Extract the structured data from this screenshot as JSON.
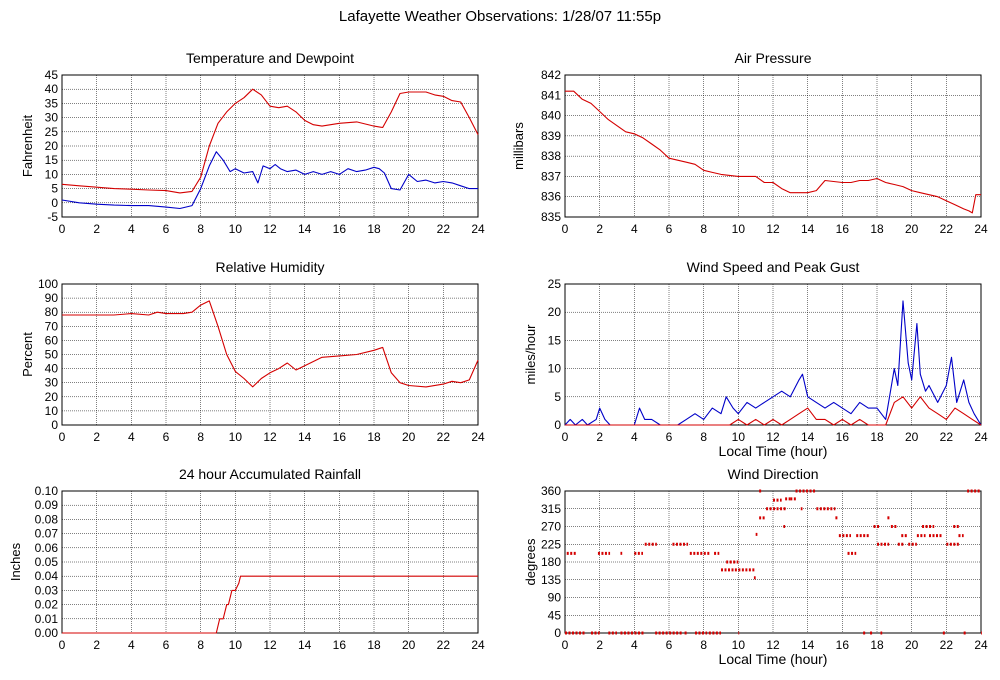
{
  "page_title": "Lafayette Weather Observations: 1/28/07 11:55p",
  "colors": {
    "series_red": "#d40000",
    "series_blue": "#0000c8",
    "grid": "#000000",
    "background": "#ffffff"
  },
  "chart_data": [
    {
      "id": "temp",
      "type": "line",
      "title": "Temperature and Dewpoint",
      "xlabel": "",
      "ylabel": "Fahrenheit",
      "xlim": [
        0,
        24
      ],
      "ylim": [
        -5,
        45
      ],
      "xticks": [
        0,
        2,
        4,
        6,
        8,
        10,
        12,
        14,
        16,
        18,
        20,
        22,
        24
      ],
      "yticks": [
        -5,
        0,
        5,
        10,
        15,
        20,
        25,
        30,
        35,
        40,
        45
      ],
      "grid": true,
      "series": [
        {
          "color": "#d40000",
          "x": [
            0,
            1,
            2,
            3,
            4,
            5,
            6,
            6.8,
            7.5,
            8,
            8.5,
            9,
            9.5,
            10,
            10.5,
            11,
            11.5,
            12,
            12.5,
            13,
            13.5,
            14,
            14.5,
            15,
            16,
            17,
            18,
            18.5,
            19,
            19.5,
            20,
            20.5,
            21,
            21.5,
            22,
            22.5,
            23,
            23.5,
            24
          ],
          "y": [
            6.5,
            6,
            5.5,
            5,
            4.8,
            4.5,
            4.3,
            3.5,
            4,
            9,
            20,
            28,
            32,
            35,
            37,
            40,
            38,
            34,
            33.5,
            34,
            32,
            29,
            27.5,
            27,
            28,
            28.5,
            27,
            26.5,
            32,
            38.5,
            39,
            39,
            39,
            38,
            37.5,
            36,
            35.5,
            30,
            24
          ]
        },
        {
          "color": "#0000c8",
          "x": [
            0,
            1,
            2,
            3,
            4,
            5,
            6,
            6.8,
            7.5,
            8,
            8.5,
            8.9,
            9.3,
            9.7,
            10,
            10.5,
            11,
            11.3,
            11.6,
            12,
            12.3,
            12.6,
            13,
            13.5,
            14,
            14.5,
            15,
            15.5,
            16,
            16.5,
            17,
            17.5,
            18,
            18.3,
            18.6,
            19,
            19.5,
            20,
            20.5,
            21,
            21.5,
            22,
            22.5,
            23,
            23.5,
            24
          ],
          "y": [
            1,
            0,
            -0.5,
            -0.8,
            -1,
            -1,
            -1.5,
            -2,
            -1,
            5,
            13,
            18,
            15,
            11,
            12,
            10.5,
            11,
            7,
            13,
            12,
            13.5,
            12,
            11,
            11.5,
            10,
            11,
            10,
            11,
            10,
            12,
            11,
            11.5,
            12.5,
            12,
            10.5,
            5,
            4.5,
            10,
            7.5,
            8,
            7,
            7.5,
            7,
            6,
            5,
            5
          ]
        }
      ]
    },
    {
      "id": "pressure",
      "type": "line",
      "title": "Air Pressure",
      "xlabel": "",
      "ylabel": "millibars",
      "xlim": [
        0,
        24
      ],
      "ylim": [
        835,
        842
      ],
      "xticks": [
        0,
        2,
        4,
        6,
        8,
        10,
        12,
        14,
        16,
        18,
        20,
        22,
        24
      ],
      "yticks": [
        835,
        836,
        837,
        838,
        839,
        840,
        841,
        842
      ],
      "grid": true,
      "series": [
        {
          "color": "#d40000",
          "x": [
            0,
            0.5,
            1,
            1.5,
            2,
            2.5,
            3,
            3.5,
            4,
            4.5,
            5,
            5.5,
            6,
            7,
            7.5,
            8,
            8.5,
            9,
            10,
            11,
            11.5,
            12,
            12.5,
            13,
            14,
            14.5,
            15,
            16,
            16.5,
            17,
            17.5,
            18,
            18.5,
            19,
            19.5,
            20,
            20.5,
            21,
            21.5,
            22,
            22.5,
            23,
            23.3,
            23.5,
            23.7,
            24
          ],
          "y": [
            841.2,
            841.2,
            840.8,
            840.6,
            840.2,
            839.8,
            839.5,
            839.2,
            839.1,
            838.9,
            838.6,
            838.3,
            837.9,
            837.7,
            837.6,
            837.3,
            837.2,
            837.1,
            837,
            837,
            836.7,
            836.7,
            836.4,
            836.2,
            836.2,
            836.3,
            836.8,
            836.7,
            836.7,
            836.8,
            836.8,
            836.9,
            836.7,
            836.6,
            836.5,
            836.3,
            836.2,
            836.1,
            836,
            835.8,
            835.6,
            835.4,
            835.3,
            835.2,
            836.1,
            836.1
          ]
        }
      ]
    },
    {
      "id": "humidity",
      "type": "line",
      "title": "Relative Humidity",
      "xlabel": "",
      "ylabel": "Percent",
      "xlim": [
        0,
        24
      ],
      "ylim": [
        0,
        100
      ],
      "xticks": [
        0,
        2,
        4,
        6,
        8,
        10,
        12,
        14,
        16,
        18,
        20,
        22,
        24
      ],
      "yticks": [
        0,
        10,
        20,
        30,
        40,
        50,
        60,
        70,
        80,
        90,
        100
      ],
      "grid": true,
      "series": [
        {
          "color": "#d40000",
          "x": [
            0,
            1,
            2,
            3,
            4,
            5,
            5.5,
            6,
            7,
            7.5,
            8,
            8.5,
            9,
            9.5,
            10,
            10.5,
            11,
            11.5,
            12,
            12.5,
            13,
            13.5,
            14,
            15,
            16,
            17,
            18,
            18.5,
            19,
            19.5,
            20,
            21,
            22,
            22.5,
            23,
            23.5,
            24
          ],
          "y": [
            78,
            78,
            78,
            78,
            79,
            78,
            80,
            79,
            79,
            80,
            85,
            88,
            70,
            50,
            38,
            33,
            27,
            33,
            37,
            40,
            44,
            39,
            42,
            48,
            49,
            50,
            53,
            55,
            37,
            30,
            28,
            27,
            29,
            31,
            30,
            32,
            46
          ]
        }
      ]
    },
    {
      "id": "wind",
      "type": "line",
      "title": "Wind Speed and Peak Gust",
      "xlabel": "Local Time (hour)",
      "ylabel": "miles/hour",
      "xlim": [
        0,
        24
      ],
      "ylim": [
        0,
        25
      ],
      "xticks": [
        0,
        2,
        4,
        6,
        8,
        10,
        12,
        14,
        16,
        18,
        20,
        22,
        24
      ],
      "yticks": [
        0,
        5,
        10,
        15,
        20,
        25
      ],
      "grid": true,
      "series": [
        {
          "color": "#0000c8",
          "x": [
            0,
            0.3,
            0.6,
            1,
            1.3,
            1.8,
            2,
            2.3,
            2.6,
            3,
            4,
            4.3,
            4.6,
            5,
            5.5,
            6,
            6.5,
            7,
            7.5,
            8,
            8.5,
            9,
            9.3,
            9.7,
            10,
            10.5,
            11,
            11.5,
            12,
            12.5,
            13,
            13.5,
            13.7,
            14,
            14.5,
            15,
            15.5,
            16,
            16.5,
            17,
            17.5,
            18,
            18.5,
            19,
            19.2,
            19.5,
            19.8,
            20,
            20.3,
            20.5,
            20.8,
            21,
            21.5,
            22,
            22.3,
            22.6,
            23,
            23.3,
            23.6,
            24
          ],
          "y": [
            0,
            1,
            0,
            1,
            0,
            1,
            3,
            1,
            0,
            0,
            0,
            3,
            1,
            1,
            0,
            0,
            0,
            1,
            2,
            1,
            3,
            2,
            5,
            3,
            2,
            4,
            3,
            4,
            5,
            6,
            5,
            8,
            9,
            5,
            4,
            3,
            4,
            3,
            2,
            4,
            3,
            3,
            1,
            10,
            7,
            22,
            11,
            8,
            18,
            9,
            6,
            7,
            4,
            7,
            12,
            4,
            8,
            4,
            2,
            0
          ]
        },
        {
          "color": "#d40000",
          "x": [
            0,
            9,
            9.5,
            10,
            10.5,
            11,
            11.5,
            12,
            12.5,
            13,
            13.5,
            14,
            14.5,
            15,
            15.5,
            16,
            16.5,
            17,
            17.5,
            18,
            18.5,
            19,
            19.5,
            20,
            20.5,
            21,
            21.5,
            22,
            22.5,
            23,
            23.5,
            24
          ],
          "y": [
            0,
            0,
            0,
            1,
            0,
            1,
            0,
            1,
            0,
            1,
            2,
            3,
            1,
            1,
            0,
            1,
            0,
            1,
            0,
            0,
            0,
            4,
            5,
            3,
            5,
            3,
            2,
            1,
            3,
            2,
            1,
            0
          ]
        }
      ]
    },
    {
      "id": "rain",
      "type": "line",
      "title": "24 hour Accumulated Rainfall",
      "xlabel": "",
      "ylabel": "Inches",
      "xlim": [
        0,
        24
      ],
      "ylim": [
        0,
        0.1
      ],
      "xticks": [
        0,
        2,
        4,
        6,
        8,
        10,
        12,
        14,
        16,
        18,
        20,
        22,
        24
      ],
      "yticks": [
        "0.00",
        "0.01",
        "0.02",
        "0.03",
        "0.04",
        "0.05",
        "0.06",
        "0.07",
        "0.08",
        "0.09",
        "0.10"
      ],
      "grid": true,
      "series": [
        {
          "color": "#d40000",
          "x": [
            0,
            8.9,
            9.1,
            9.3,
            9.5,
            9.6,
            9.8,
            10,
            10.2,
            10.3,
            24
          ],
          "y": [
            0,
            0,
            0.01,
            0.01,
            0.02,
            0.02,
            0.03,
            0.03,
            0.035,
            0.04,
            0.04
          ]
        }
      ]
    },
    {
      "id": "direction",
      "type": "scatter",
      "title": "Wind Direction",
      "xlabel": "Local Time (hour)",
      "ylabel": "degrees",
      "xlim": [
        0,
        24
      ],
      "ylim": [
        0,
        360
      ],
      "xticks": [
        0,
        2,
        4,
        6,
        8,
        10,
        12,
        14,
        16,
        18,
        20,
        22,
        24
      ],
      "yticks": [
        0,
        45,
        90,
        135,
        180,
        225,
        270,
        315,
        360
      ],
      "grid": true,
      "series": [
        {
          "color": "#d40000",
          "segments": [
            [
              0,
              1.2,
              0
            ],
            [
              0.1,
              0.7,
              202
            ],
            [
              1.5,
              2.0,
              0
            ],
            [
              1.9,
              2.6,
              202
            ],
            [
              2.5,
              3.0,
              0
            ],
            [
              3.2,
              3.3,
              202
            ],
            [
              3.2,
              4.6,
              0
            ],
            [
              4.0,
              4.5,
              202
            ],
            [
              4.6,
              5.3,
              225
            ],
            [
              5.2,
              6.8,
              0
            ],
            [
              6.2,
              7.1,
              225
            ],
            [
              6.9,
              7.1,
              0
            ],
            [
              7.2,
              8.4,
              202
            ],
            [
              7.5,
              8.2,
              0
            ],
            [
              8.3,
              9.0,
              0
            ],
            [
              8.6,
              8.9,
              202
            ],
            [
              9.0,
              9.8,
              160
            ],
            [
              9.3,
              10.0,
              180
            ],
            [
              9.8,
              11.0,
              160
            ],
            [
              10.0,
              10.05,
              0
            ],
            [
              10.9,
              11.0,
              140
            ],
            [
              11.0,
              11.1,
              250
            ],
            [
              11.2,
              11.4,
              370
            ],
            [
              11.2,
              11.6,
              292
            ],
            [
              11.6,
              12.8,
              315
            ],
            [
              12.0,
              12.5,
              337
            ],
            [
              12.6,
              12.7,
              270
            ],
            [
              12.7,
              13.0,
              340
            ],
            [
              13.0,
              13.4,
              340
            ],
            [
              13.3,
              14.5,
              370
            ],
            [
              13.6,
              13.7,
              315
            ],
            [
              14.5,
              15.6,
              315
            ],
            [
              15.6,
              15.8,
              292
            ],
            [
              15.8,
              16.5,
              247
            ],
            [
              16.3,
              16.8,
              202
            ],
            [
              16.8,
              17.6,
              247
            ],
            [
              17.2,
              17.4,
              0
            ],
            [
              17.6,
              17.8,
              0
            ],
            [
              17.8,
              18.2,
              270
            ],
            [
              18.0,
              18.7,
              225
            ],
            [
              18.2,
              18.3,
              0
            ],
            [
              18.6,
              18.8,
              292
            ],
            [
              18.8,
              19.2,
              270
            ],
            [
              19.2,
              19.6,
              225
            ],
            [
              19.4,
              19.8,
              247
            ],
            [
              19.8,
              20.3,
              225
            ],
            [
              20.3,
              20.8,
              247
            ],
            [
              20.6,
              21.3,
              270
            ],
            [
              21.0,
              21.8,
              247
            ],
            [
              21.8,
              22.0,
              0
            ],
            [
              22.0,
              22.8,
              225
            ],
            [
              22.4,
              22.8,
              270
            ],
            [
              22.7,
              23.0,
              247
            ],
            [
              23.0,
              23.2,
              0
            ],
            [
              23.2,
              24.0,
              370
            ],
            [
              24.0,
              24.05,
              0
            ]
          ]
        }
      ]
    }
  ]
}
